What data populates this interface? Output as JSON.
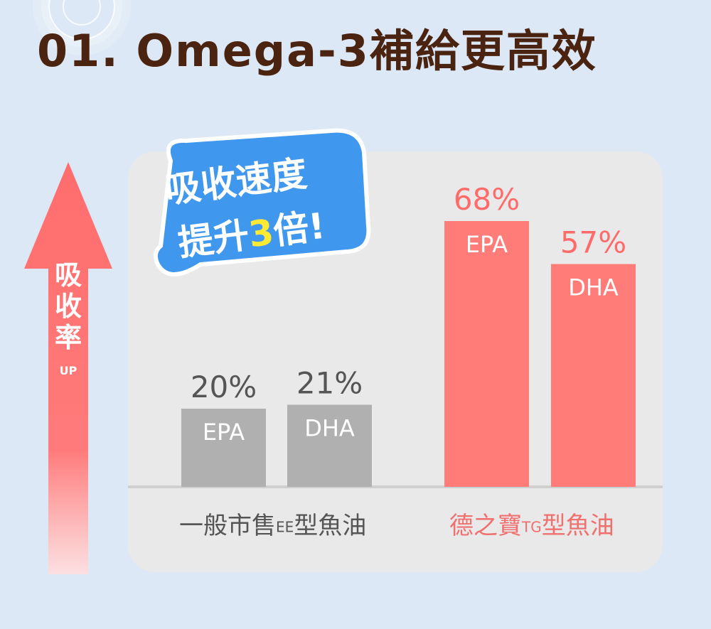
{
  "title": "01. Omega-3補給更高效",
  "side_arrow": {
    "label_lines": [
      "吸",
      "收",
      "率"
    ],
    "sub": "UP"
  },
  "bubble": {
    "line1": "吸收速度",
    "line2_pre": "提升",
    "line2_num": "3",
    "line2_post": "倍!"
  },
  "colors": {
    "gray_bar": "#b0b0b0",
    "red_bar": "#ff7c78",
    "accent_text": "#ff6b6b",
    "title": "#4a2410",
    "bubble": "#3f97ee"
  },
  "chart_data": {
    "type": "bar",
    "ylim": [
      0,
      100
    ],
    "groups": [
      {
        "label_main": "一般市售",
        "label_small": "EE",
        "label_end": "型魚油",
        "bars": [
          {
            "name": "EPA",
            "value": 20
          },
          {
            "name": "DHA",
            "value": 21
          }
        ]
      },
      {
        "label_main": "德之寶",
        "label_small": "TG",
        "label_end": "型魚油",
        "bars": [
          {
            "name": "EPA",
            "value": 68
          },
          {
            "name": "DHA",
            "value": 57
          }
        ]
      }
    ],
    "value_suffix": "%"
  }
}
